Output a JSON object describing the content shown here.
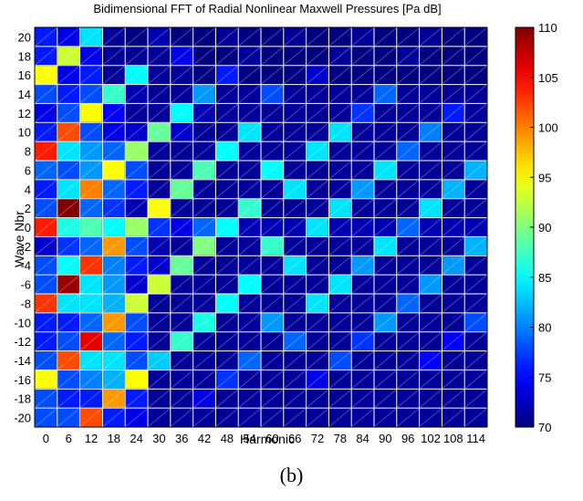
{
  "figure": {
    "caption": "(b)"
  },
  "chart_data": {
    "type": "heatmap",
    "title": "Bidimensional FFT of Radial Nonlinear Maxwell Pressures [Pa dB]",
    "xlabel": "Harmonic",
    "ylabel": "Wave Nbr",
    "x": [
      0,
      6,
      12,
      18,
      24,
      30,
      36,
      42,
      48,
      54,
      60,
      66,
      72,
      78,
      84,
      90,
      96,
      102,
      108,
      114
    ],
    "y": [
      20,
      18,
      16,
      14,
      12,
      10,
      8,
      6,
      4,
      2,
      0,
      -2,
      -4,
      -6,
      -8,
      -10,
      -12,
      -14,
      -16,
      -18,
      -20
    ],
    "z": [
      [
        76,
        74,
        84,
        71,
        70,
        72,
        70,
        70,
        71,
        70,
        70,
        71,
        70,
        70,
        71,
        70,
        70,
        71,
        70,
        70
      ],
      [
        76,
        93,
        74,
        71,
        71,
        71,
        74,
        70,
        70,
        71,
        70,
        70,
        70,
        71,
        70,
        70,
        71,
        70,
        70,
        70
      ],
      [
        95,
        74,
        76,
        71,
        85,
        71,
        71,
        70,
        76,
        70,
        70,
        70,
        73,
        70,
        70,
        70,
        70,
        70,
        70,
        70
      ],
      [
        78,
        76,
        78,
        87,
        72,
        71,
        71,
        81,
        71,
        71,
        78,
        71,
        71,
        71,
        71,
        79,
        71,
        71,
        71,
        71
      ],
      [
        74,
        78,
        95,
        75,
        71,
        71,
        85,
        72,
        71,
        71,
        71,
        71,
        71,
        71,
        77,
        71,
        71,
        71,
        76,
        71
      ],
      [
        76,
        102,
        78,
        74,
        73,
        89,
        73,
        71,
        71,
        84,
        71,
        71,
        71,
        84,
        71,
        71,
        71,
        80,
        71,
        71
      ],
      [
        104,
        84,
        81,
        79,
        91,
        71,
        71,
        71,
        85,
        71,
        71,
        71,
        84,
        71,
        71,
        71,
        79,
        71,
        71,
        71
      ],
      [
        79,
        78,
        81,
        95,
        78,
        71,
        71,
        88,
        71,
        71,
        85,
        71,
        71,
        71,
        71,
        84,
        71,
        71,
        71,
        82
      ],
      [
        76,
        84,
        100,
        79,
        76,
        71,
        89,
        71,
        71,
        71,
        71,
        84,
        71,
        71,
        81,
        71,
        71,
        71,
        82,
        71
      ],
      [
        78,
        110,
        79,
        77,
        72,
        95,
        71,
        71,
        71,
        87,
        71,
        71,
        71,
        84,
        71,
        71,
        71,
        84,
        71,
        71
      ],
      [
        104,
        86,
        88,
        85,
        91,
        77,
        74,
        79,
        85,
        72,
        72,
        72,
        84,
        72,
        72,
        72,
        79,
        72,
        72,
        72
      ],
      [
        73,
        77,
        79,
        99,
        78,
        72,
        71,
        90,
        71,
        71,
        87,
        71,
        71,
        71,
        71,
        84,
        71,
        71,
        71,
        82
      ],
      [
        78,
        85,
        103,
        80,
        76,
        73,
        89,
        71,
        71,
        71,
        71,
        84,
        71,
        71,
        81,
        71,
        71,
        71,
        81,
        71
      ],
      [
        78,
        109,
        84,
        81,
        73,
        93,
        71,
        71,
        71,
        85,
        71,
        71,
        71,
        84,
        71,
        71,
        71,
        81,
        71,
        71
      ],
      [
        103,
        84,
        84,
        82,
        93,
        71,
        71,
        71,
        85,
        71,
        71,
        71,
        84,
        71,
        71,
        71,
        79,
        71,
        71,
        71
      ],
      [
        76,
        76,
        79,
        99,
        78,
        71,
        71,
        86,
        71,
        71,
        81,
        71,
        71,
        71,
        71,
        81,
        71,
        71,
        71,
        78
      ],
      [
        76,
        78,
        106,
        79,
        76,
        71,
        87,
        71,
        71,
        71,
        71,
        79,
        71,
        71,
        77,
        71,
        71,
        71,
        75,
        71
      ],
      [
        78,
        102,
        84,
        84,
        78,
        83,
        71,
        71,
        71,
        79,
        71,
        71,
        71,
        78,
        71,
        71,
        71,
        75,
        71,
        71
      ],
      [
        95,
        78,
        80,
        82,
        95,
        71,
        71,
        71,
        77,
        71,
        71,
        71,
        74,
        71,
        71,
        71,
        71,
        71,
        71,
        71
      ],
      [
        78,
        76,
        76,
        99,
        76,
        71,
        71,
        74,
        71,
        71,
        71,
        71,
        71,
        71,
        71,
        71,
        71,
        71,
        71,
        71
      ],
      [
        78,
        78,
        102,
        76,
        74,
        71,
        71,
        71,
        71,
        71,
        71,
        71,
        71,
        71,
        71,
        71,
        71,
        71,
        71,
        71
      ]
    ],
    "colorbar": {
      "min": 70,
      "max": 110,
      "ticks": [
        70,
        75,
        80,
        85,
        90,
        95,
        100,
        105,
        110
      ],
      "colormap": "jet"
    },
    "grid": true
  }
}
